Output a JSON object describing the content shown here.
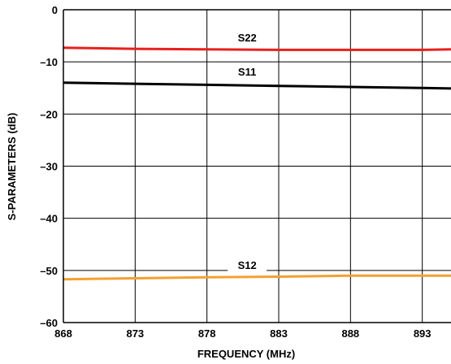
{
  "chart_data": {
    "type": "line",
    "xlabel": "FREQUENCY (MHz)",
    "ylabel": "S-PARAMETERS (dB)",
    "xlim": [
      868,
      895
    ],
    "ylim": [
      -60,
      0
    ],
    "x_ticks": [
      "868",
      "873",
      "878",
      "883",
      "888",
      "893"
    ],
    "y_ticks": [
      "0",
      "–10",
      "–20",
      "–30",
      "–40",
      "–50",
      "–60"
    ],
    "grid": true,
    "series": [
      {
        "name": "S22",
        "color": "#e8201c",
        "x": [
          868,
          873,
          878,
          883,
          888,
          893,
          895
        ],
        "y": [
          -7.3,
          -7.5,
          -7.6,
          -7.7,
          -7.7,
          -7.7,
          -7.6
        ]
      },
      {
        "name": "S11",
        "color": "#000000",
        "x": [
          868,
          873,
          878,
          883,
          888,
          893,
          895
        ],
        "y": [
          -14.0,
          -14.2,
          -14.4,
          -14.6,
          -14.8,
          -15.0,
          -15.1
        ]
      },
      {
        "name": "S12",
        "color": "#f5a030",
        "x": [
          868,
          873,
          878,
          883,
          888,
          893,
          895
        ],
        "y": [
          -51.7,
          -51.5,
          -51.3,
          -51.2,
          -51.0,
          -51.0,
          -51.0
        ]
      }
    ]
  }
}
